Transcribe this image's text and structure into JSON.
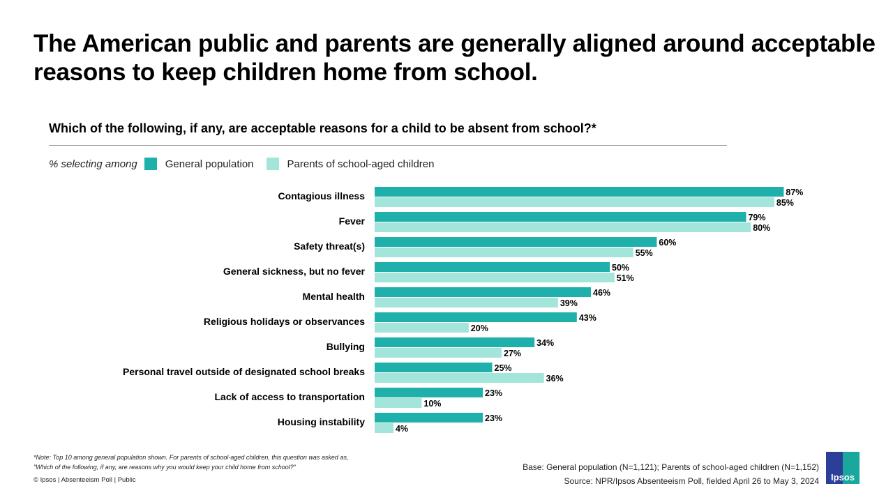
{
  "title": "The American public and parents are generally aligned around acceptable reasons to keep children home from school.",
  "question": "Which of the following, if any, are acceptable reasons for a child to be absent from school?*",
  "legend": {
    "prefix": "% selecting among",
    "items": [
      "General population",
      "Parents of school-aged children"
    ]
  },
  "colors": {
    "general": "#1fb0ab",
    "parents": "#a3e5da"
  },
  "chart_data": {
    "type": "bar",
    "orientation": "horizontal",
    "xlim": [
      0,
      100
    ],
    "grid": false,
    "legend": "top-left",
    "categories": [
      "Contagious illness",
      "Fever",
      "Safety threat(s)",
      "General sickness, but no fever",
      "Mental health",
      "Religious holidays or observances",
      "Bullying",
      "Personal travel outside of designated school breaks",
      "Lack of access to transportation",
      "Housing instability"
    ],
    "series": [
      {
        "name": "General population",
        "values": [
          87,
          79,
          60,
          50,
          46,
          43,
          34,
          25,
          23,
          23
        ]
      },
      {
        "name": "Parents of school-aged children",
        "values": [
          85,
          80,
          55,
          51,
          39,
          20,
          27,
          36,
          10,
          4
        ]
      }
    ]
  },
  "footer": {
    "note": "*Note: Top 10 among general population shown. For parents of school-aged children, this question was asked as, \"Which of the following, if any, are reasons why you would keep your child home from school?\"",
    "copyright": "© Ipsos | Absenteeism Poll | Public",
    "base": "Base: General population (N=1,121); Parents of school-aged children (N=1,152)",
    "source": "Source: NPR/Ipsos Absenteeism Poll, fielded April 26 to May 3, 2024",
    "logo": "Ipsos"
  }
}
